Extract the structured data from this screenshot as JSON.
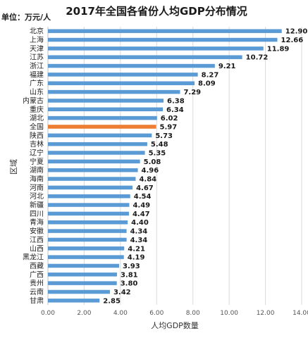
{
  "chart_data": {
    "type": "bar",
    "orientation": "horizontal",
    "title": "2017年全国各省份人均GDP分布情况",
    "unit_label": "单位：万元/人",
    "xlabel": "人均GDP数量",
    "ylabel": "区域",
    "xlim": [
      0,
      14
    ],
    "x_ticks": [
      "0.00",
      "2.00",
      "4.00",
      "6.00",
      "8.00",
      "10.00",
      "12.00",
      "14.00"
    ],
    "grid": true,
    "categories": [
      "北京",
      "上海",
      "天津",
      "江苏",
      "浙江",
      "福建",
      "广东",
      "山东",
      "内蒙古",
      "重庆",
      "湖北",
      "全国",
      "陕西",
      "吉林",
      "辽宁",
      "宁夏",
      "湖南",
      "海南",
      "河南",
      "河北",
      "新疆",
      "四川",
      "青海",
      "安徽",
      "江西",
      "山西",
      "黑龙江",
      "西藏",
      "广西",
      "贵州",
      "云南",
      "甘肃"
    ],
    "values": [
      12.9,
      12.66,
      11.89,
      10.72,
      9.21,
      8.27,
      8.09,
      7.29,
      6.38,
      6.34,
      6.02,
      5.97,
      5.73,
      5.48,
      5.35,
      5.08,
      4.96,
      4.84,
      4.67,
      4.54,
      4.49,
      4.47,
      4.4,
      4.34,
      4.34,
      4.21,
      4.19,
      3.93,
      3.81,
      3.8,
      3.42,
      2.85
    ],
    "value_labels": [
      "12.90",
      "12.66",
      "11.89",
      "10.72",
      "9.21",
      "8.27",
      "8.09",
      "7.29",
      "6.38",
      "6.34",
      "6.02",
      "5.97",
      "5.73",
      "5.48",
      "5.35",
      "5.08",
      "4.96",
      "4.84",
      "4.67",
      "4.54",
      "4.49",
      "4.47",
      "4.40",
      "4.34",
      "4.34",
      "4.21",
      "4.19",
      "3.93",
      "3.81",
      "3.80",
      "3.42",
      "2.85"
    ],
    "highlight_category": "全国",
    "colors": {
      "bar": "#5b9bd5",
      "highlight": "#ed7d31"
    }
  }
}
